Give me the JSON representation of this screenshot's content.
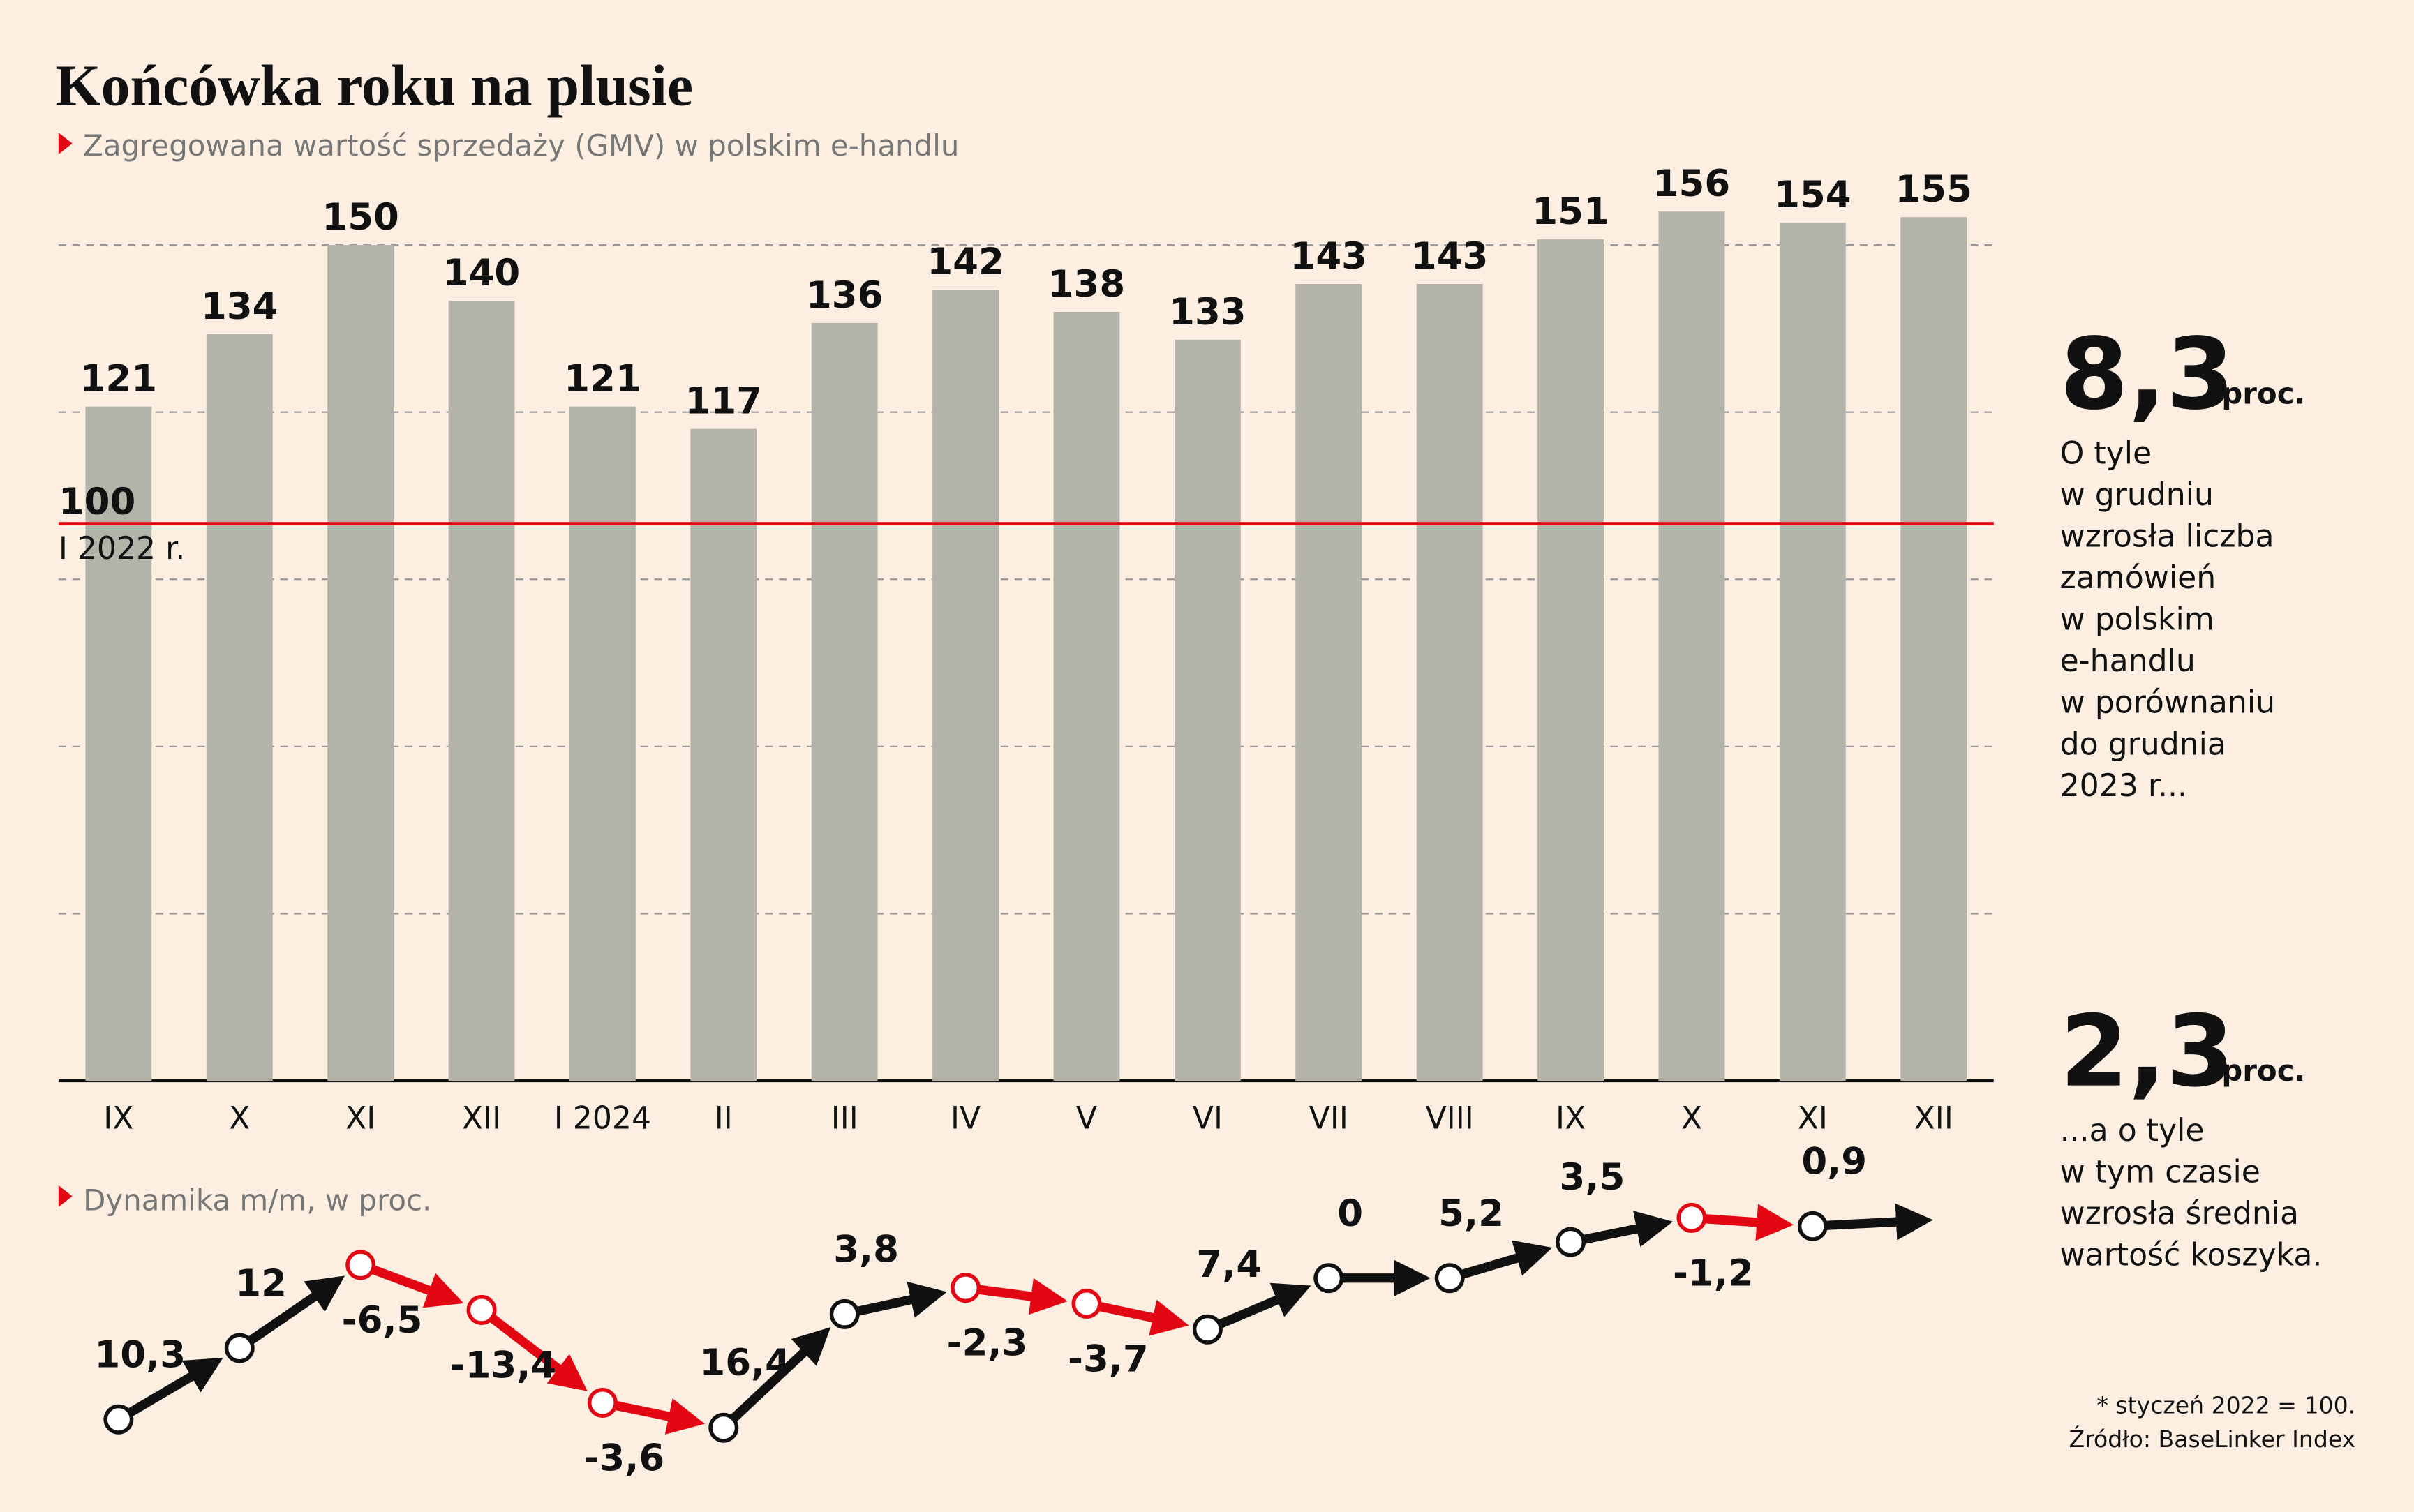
{
  "chart_data": [
    {
      "type": "bar",
      "title": "Końcówka roku na plusie",
      "subtitle": "Zagregowana wartość sprzedaży (GMV) w polskim e-handlu",
      "categories": [
        "IX",
        "X",
        "XI",
        "XII",
        "I 2024",
        "II",
        "III",
        "IV",
        "V",
        "VI",
        "VII",
        "VIII",
        "IX",
        "X",
        "XI",
        "XII"
      ],
      "values": [
        121,
        134,
        150,
        140,
        121,
        117,
        136,
        142,
        138,
        133,
        143,
        143,
        151,
        156,
        154,
        155
      ],
      "color": "#b4b3aa",
      "ylim": [
        0,
        150
      ],
      "yticks": [
        0,
        30,
        60,
        90,
        120,
        150
      ],
      "grid": true,
      "reference_line": {
        "value": 100,
        "label": "100",
        "note": "I 2022 r.",
        "color": "#e30613"
      }
    },
    {
      "type": "arrows",
      "subtitle": "Dynamika m/m, w proc.",
      "values": [
        10.3,
        12,
        -6.5,
        -13.4,
        -3.6,
        16.4,
        3.8,
        -2.3,
        -3.7,
        7.4,
        0,
        5.2,
        3.5,
        -1.2,
        0.9
      ],
      "value_labels": [
        "10,3",
        "12",
        "-6,5",
        "-13,4",
        "-3,6",
        "16,4",
        "3,8",
        "-2,3",
        "-3,7",
        "7,4",
        "0",
        "5,2",
        "3,5",
        "-1,2",
        "0,9"
      ],
      "positive_color": "#111111",
      "negative_color": "#e30613"
    }
  ],
  "highlights": [
    {
      "value": "8,3",
      "unit": "proc.",
      "text": [
        "O tyle",
        "w grudniu",
        "wzrosła liczba",
        "zamówień",
        "w polskim",
        "e-handlu",
        "w porównaniu",
        "do grudnia",
        "2023 r..."
      ]
    },
    {
      "value": "2,3",
      "unit": "proc.",
      "text": [
        "...a o tyle",
        "w tym czasie",
        "wzrosła średnia",
        "wartość koszyka."
      ]
    }
  ],
  "footnote": "* styczeń 2022 = 100.",
  "source": "Źródło: BaseLinker Index"
}
